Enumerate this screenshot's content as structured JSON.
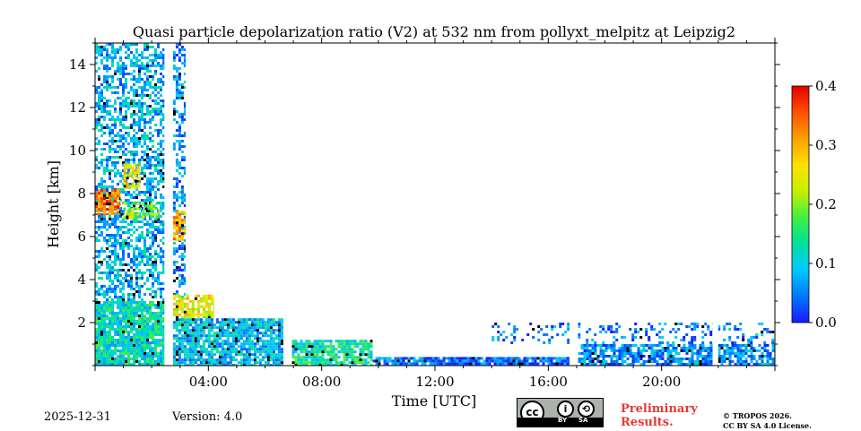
{
  "chart_data": {
    "type": "heatmap",
    "title": "Quasi particle depolarization ratio (V2) at 532 nm from pollyxt_melpitz at Leipzig2",
    "xlabel": "Time [UTC]",
    "ylabel": "Height [km]",
    "xlim_hours": [
      0,
      24
    ],
    "ylim_km": [
      0,
      15
    ],
    "x_ticks": [
      {
        "hour": 4,
        "label": "04:00"
      },
      {
        "hour": 8,
        "label": "08:00"
      },
      {
        "hour": 12,
        "label": "12:00"
      },
      {
        "hour": 16,
        "label": "16:00"
      },
      {
        "hour": 20,
        "label": "20:00"
      }
    ],
    "y_ticks": [
      {
        "km": 2,
        "label": "2"
      },
      {
        "km": 4,
        "label": "4"
      },
      {
        "km": 6,
        "label": "6"
      },
      {
        "km": 8,
        "label": "8"
      },
      {
        "km": 10,
        "label": "10"
      },
      {
        "km": 12,
        "label": "12"
      },
      {
        "km": 14,
        "label": "14"
      }
    ],
    "colorbar": {
      "min": 0.0,
      "max": 0.4,
      "ticks": [
        {
          "value": 0.0,
          "label": "0.0"
        },
        {
          "value": 0.1,
          "label": "0.1"
        },
        {
          "value": 0.2,
          "label": "0.2"
        },
        {
          "value": 0.3,
          "label": "0.3"
        },
        {
          "value": 0.4,
          "label": "0.4"
        }
      ],
      "colormap": [
        "#1a1aff",
        "#0078ff",
        "#00c8ff",
        "#00e0a0",
        "#40f040",
        "#c8f000",
        "#ffe000",
        "#ffa000",
        "#ff5000",
        "#e00000"
      ]
    },
    "data_gaps_hours": [
      [
        2.45,
        2.75
      ],
      [
        6.65,
        6.95
      ],
      [
        16.75,
        17.05
      ],
      [
        21.8,
        22.0
      ]
    ],
    "regions": [
      {
        "name": "noisy-upper-column-night",
        "t_start": 0.0,
        "t_end": 2.45,
        "h_start": 3.0,
        "h_end": 15.0,
        "ratio": 0.08,
        "density": 0.55
      },
      {
        "name": "noisy-column-after-gap",
        "t_start": 2.75,
        "t_end": 3.2,
        "h_start": 3.0,
        "h_end": 15.0,
        "ratio": 0.06,
        "density": 0.45
      },
      {
        "name": "aerosol-layer-lower-night",
        "t_start": 0.0,
        "t_end": 2.45,
        "h_start": 0.0,
        "h_end": 3.0,
        "ratio": 0.12,
        "density": 0.9
      },
      {
        "name": "elevated-layer-around-8km",
        "t_start": 0.0,
        "t_end": 0.9,
        "h_start": 7.0,
        "h_end": 8.2,
        "ratio": 0.34,
        "density": 0.85
      },
      {
        "name": "elevated-layer-tail",
        "t_start": 0.9,
        "t_end": 2.3,
        "h_start": 6.8,
        "h_end": 7.6,
        "ratio": 0.2,
        "density": 0.6
      },
      {
        "name": "plume-near-9km",
        "t_start": 1.0,
        "t_end": 1.6,
        "h_start": 8.2,
        "h_end": 9.4,
        "ratio": 0.26,
        "density": 0.7
      },
      {
        "name": "layer-6-7km-after-gap",
        "t_start": 2.75,
        "t_end": 3.2,
        "h_start": 5.8,
        "h_end": 7.2,
        "ratio": 0.3,
        "density": 0.8
      },
      {
        "name": "layer-3km-after-gap",
        "t_start": 2.75,
        "t_end": 4.2,
        "h_start": 2.2,
        "h_end": 3.3,
        "ratio": 0.25,
        "density": 0.75
      },
      {
        "name": "boundary-layer-morning",
        "t_start": 2.75,
        "t_end": 6.65,
        "h_start": 0.0,
        "h_end": 2.2,
        "ratio": 0.09,
        "density": 0.85
      },
      {
        "name": "boundary-layer-forenoon",
        "t_start": 6.95,
        "t_end": 9.8,
        "h_start": 0.0,
        "h_end": 1.2,
        "ratio": 0.13,
        "density": 0.8
      },
      {
        "name": "low-layer-midday",
        "t_start": 9.8,
        "t_end": 16.75,
        "h_start": 0.0,
        "h_end": 0.4,
        "ratio": 0.04,
        "density": 0.85
      },
      {
        "name": "boundary-layer-evening",
        "t_start": 17.05,
        "t_end": 24.0,
        "h_start": 0.0,
        "h_end": 1.0,
        "ratio": 0.06,
        "density": 0.75
      },
      {
        "name": "sparse-noise-afternoon",
        "t_start": 14.0,
        "t_end": 24.0,
        "h_start": 1.0,
        "h_end": 2.0,
        "ratio": 0.05,
        "density": 0.25
      }
    ]
  },
  "footer": {
    "date": "2025-12-31",
    "version": "Version: 4.0",
    "license_by": "BY",
    "license_sa": "SA",
    "license_cc": "cc",
    "preliminary_line1": "Preliminary",
    "preliminary_line2": "Results.",
    "copyright_line1": "© TROPOS 2026.",
    "copyright_line2": "CC BY SA 4.0 License."
  },
  "colors": {
    "preliminary": "#e53935",
    "axis": "#000000",
    "background": "#ffffff"
  }
}
